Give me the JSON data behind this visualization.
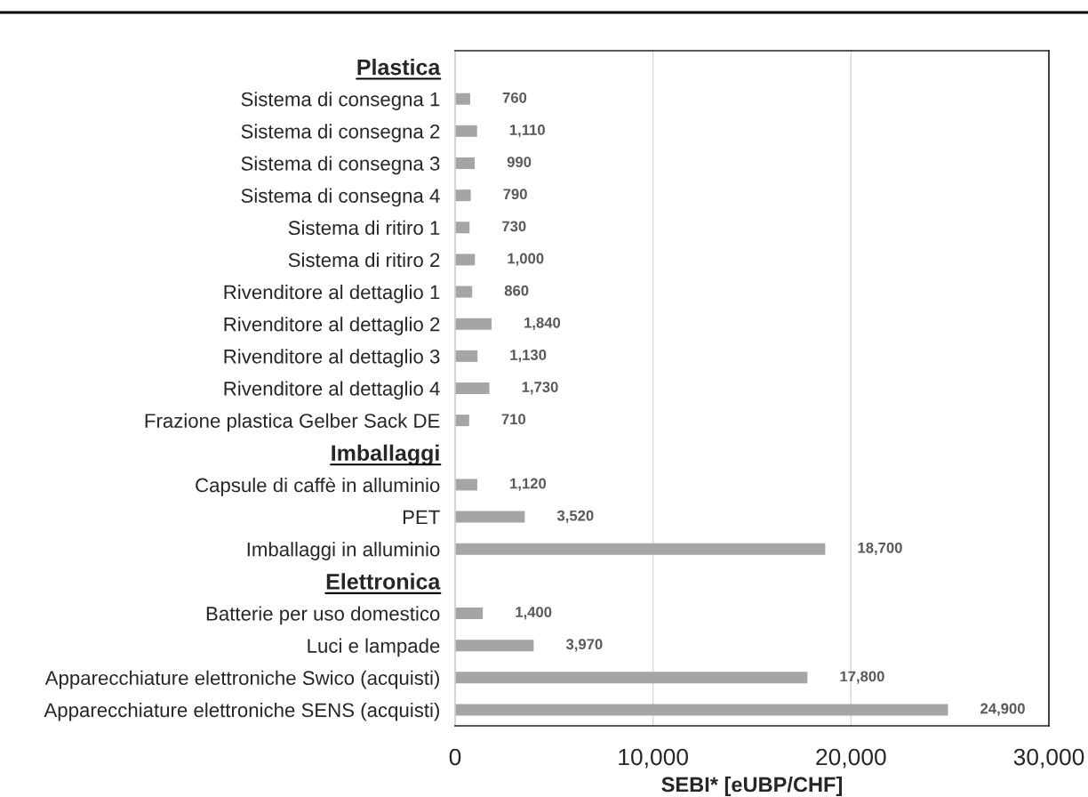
{
  "chart_data": {
    "type": "bar",
    "orientation": "horizontal",
    "categories": [
      "Plastica",
      "Sistema di consegna 1",
      "Sistema di consegna 2",
      "Sistema di consegna 3",
      "Sistema di consegna 4",
      "Sistema di ritiro 1",
      "Sistema di ritiro 2",
      "Rivenditore al dettaglio 1",
      "Rivenditore al dettaglio 2",
      "Rivenditore al dettaglio 3",
      "Rivenditore al dettaglio 4",
      "Frazione plastica Gelber Sack DE",
      "Imballaggi",
      "Capsule di caffè in alluminio",
      "PET",
      "Imballaggi in alluminio",
      "Elettronica",
      "Batterie per uso domestico",
      "Luci e lampade",
      "Apparecchiature elettroniche Swico (acquisti)",
      "Apparecchiature elettroniche SENS (acquisti)"
    ],
    "values": [
      null,
      760,
      1110,
      990,
      790,
      730,
      1000,
      860,
      1840,
      1130,
      1730,
      710,
      null,
      1120,
      3520,
      18700,
      null,
      1400,
      3970,
      17800,
      24900
    ],
    "value_labels": [
      null,
      "760",
      "1,110",
      "990",
      "790",
      "730",
      "1,000",
      "860",
      "1,840",
      "1,130",
      "1,730",
      "710",
      null,
      "1,120",
      "3,520",
      "18,700",
      null,
      "1,400",
      "3,970",
      "17,800",
      "24,900"
    ],
    "color": "#a5a5a5",
    "xlim": [
      0,
      30000
    ],
    "xticks": [
      0,
      {
        "value": 10000,
        "label": "10,000"
      },
      {
        "value": 20000,
        "label": "20,000"
      },
      {
        "value": 30000,
        "label": "30,000"
      }
    ],
    "xlabel": "SEBI* [eUBP/CHF]",
    "grid": "x"
  }
}
